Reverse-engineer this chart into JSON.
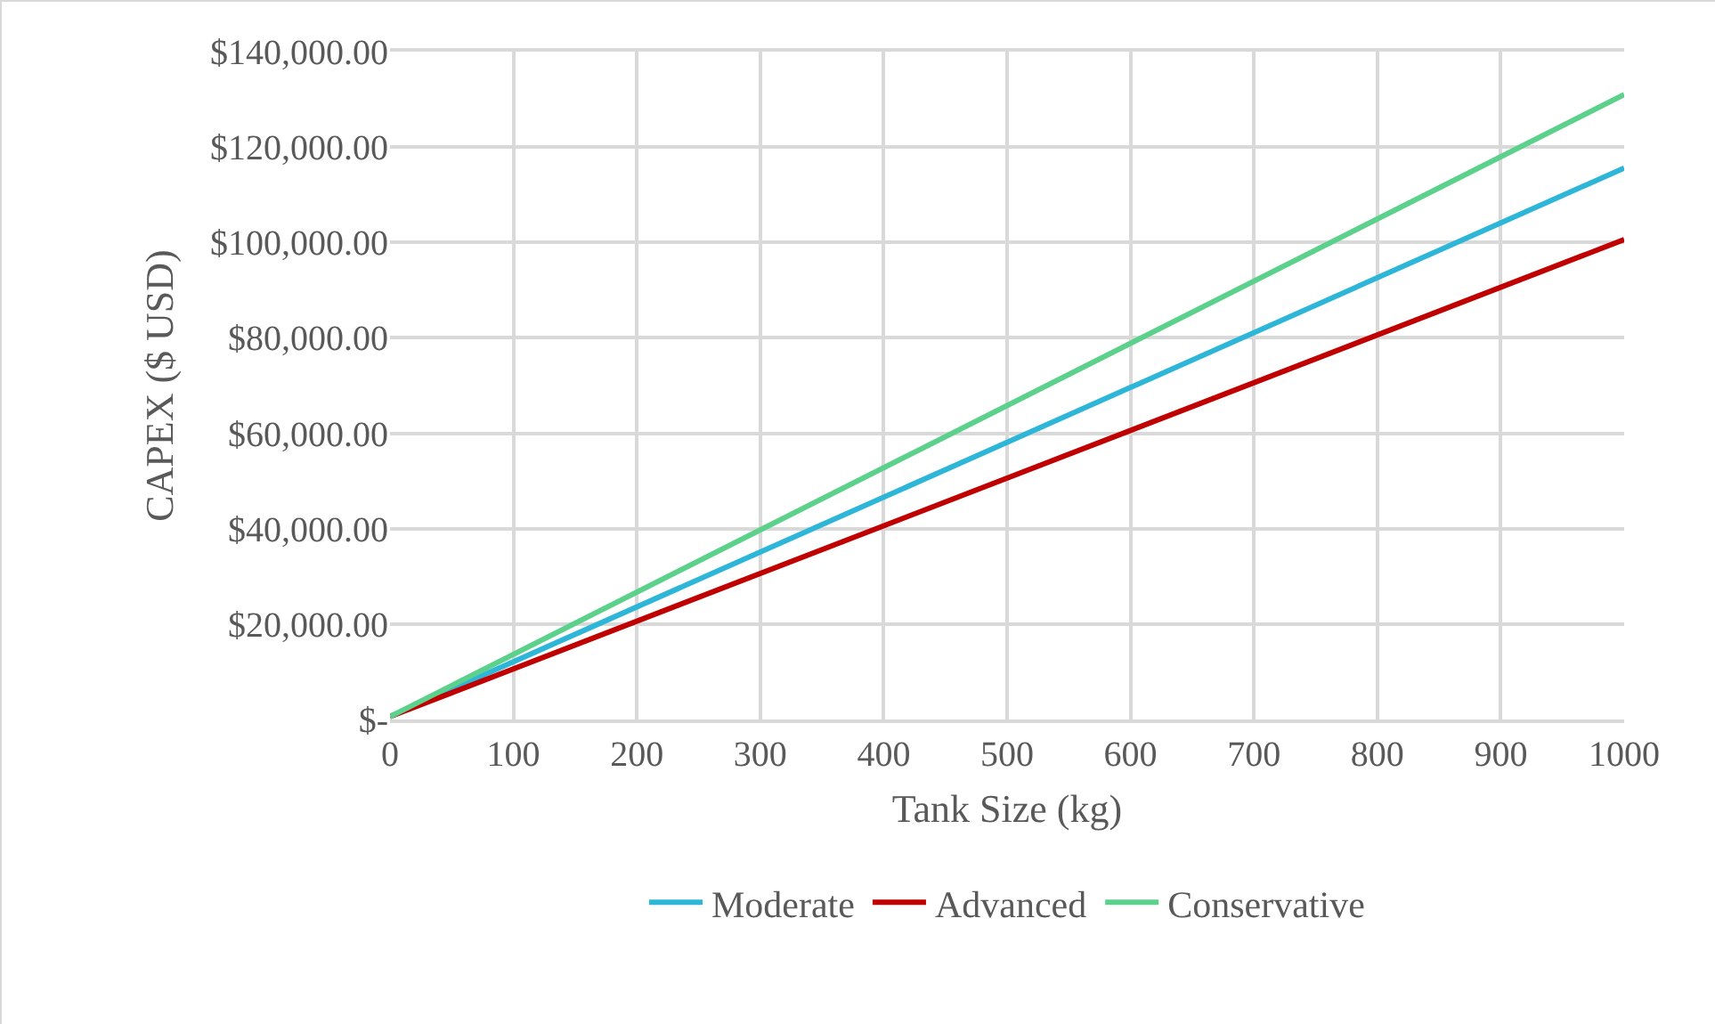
{
  "chart_data": {
    "type": "line",
    "xlabel": "Tank Size (kg)",
    "ylabel": "CAPEX ($ USD)",
    "x": [
      0,
      1000
    ],
    "series": [
      {
        "name": "Moderate",
        "color": "#2eb6d9",
        "values": [
          600,
          115600
        ]
      },
      {
        "name": "Advanced",
        "color": "#c00000",
        "values": [
          600,
          100600
        ]
      },
      {
        "name": "Conservative",
        "color": "#5cd18c",
        "values": [
          600,
          131000
        ]
      }
    ],
    "xlim": [
      0,
      1000
    ],
    "xticks": [
      0,
      100,
      200,
      300,
      400,
      500,
      600,
      700,
      800,
      900,
      1000
    ],
    "ylim": [
      0,
      140000
    ],
    "yticks": [
      {
        "value": 0,
        "label": "$-"
      },
      {
        "value": 20000,
        "label": "$20,000.00"
      },
      {
        "value": 40000,
        "label": "$40,000.00"
      },
      {
        "value": 60000,
        "label": "$60,000.00"
      },
      {
        "value": 80000,
        "label": "$80,000.00"
      },
      {
        "value": 100000,
        "label": "$100,000.00"
      },
      {
        "value": 120000,
        "label": "$120,000.00"
      },
      {
        "value": 140000,
        "label": "$140,000.00"
      }
    ],
    "grid": true,
    "legend": "bottom",
    "marker": "none",
    "line_style": "solid"
  }
}
